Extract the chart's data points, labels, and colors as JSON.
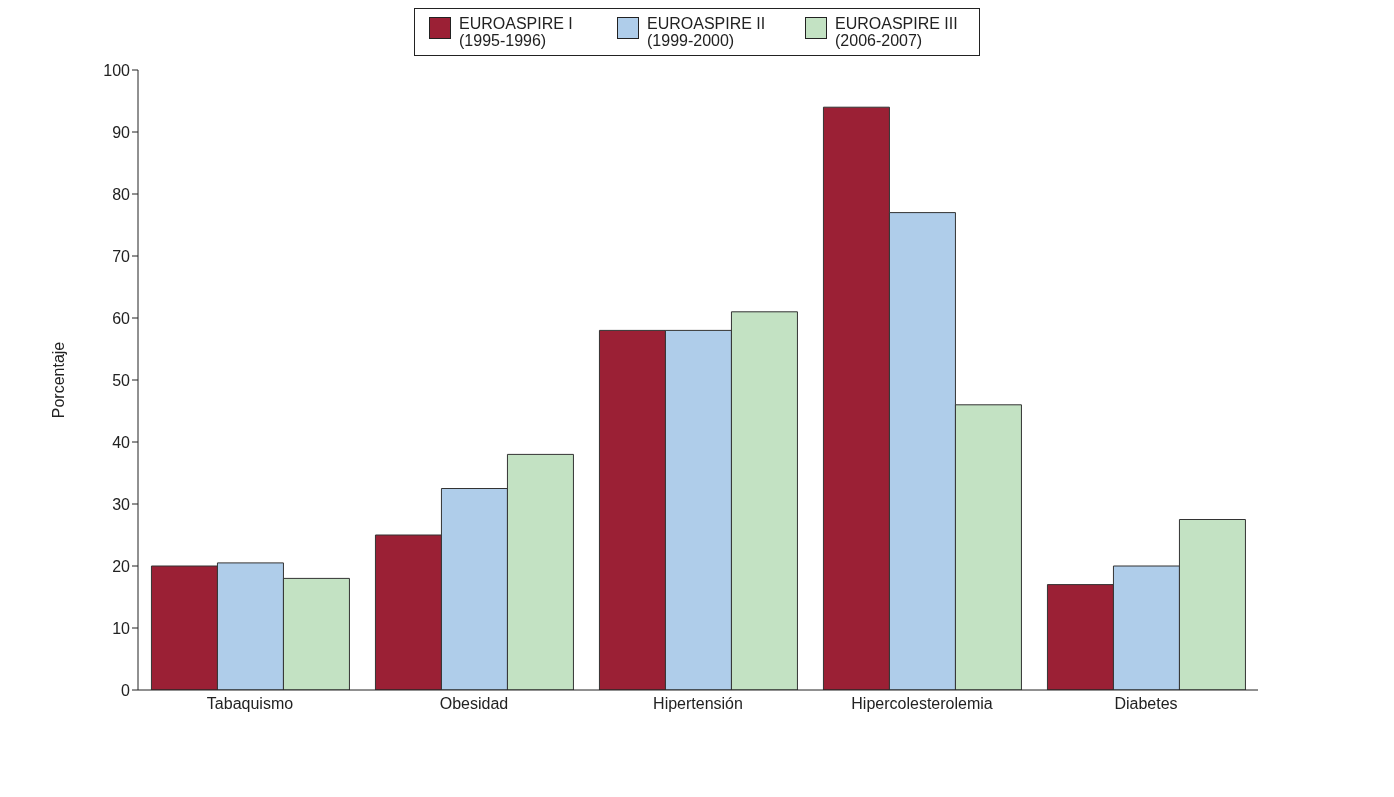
{
  "chart_data": {
    "type": "bar",
    "ylabel": "Porcentaje",
    "categories": [
      "Tabaquismo",
      "Obesidad",
      "Hipertensión",
      "Hipercolesterolemia",
      "Diabetes"
    ],
    "series": [
      {
        "name": "EUROASPIRE I (1995-1996)",
        "color": "#9b2035",
        "values": [
          20,
          25,
          58,
          94,
          17
        ]
      },
      {
        "name": "EUROASPIRE II (1999-2000)",
        "color": "#afcdea",
        "values": [
          20.5,
          32.5,
          58,
          77,
          20
        ]
      },
      {
        "name": "EUROASPIRE III (2006-2007)",
        "color": "#c3e2c3",
        "values": [
          18,
          38,
          61,
          46,
          27.5
        ]
      }
    ],
    "ylim": [
      0,
      100
    ],
    "yticks": [
      0,
      10,
      20,
      30,
      40,
      50,
      60,
      70,
      80,
      90,
      100
    ],
    "grid": false,
    "legend": "top"
  }
}
